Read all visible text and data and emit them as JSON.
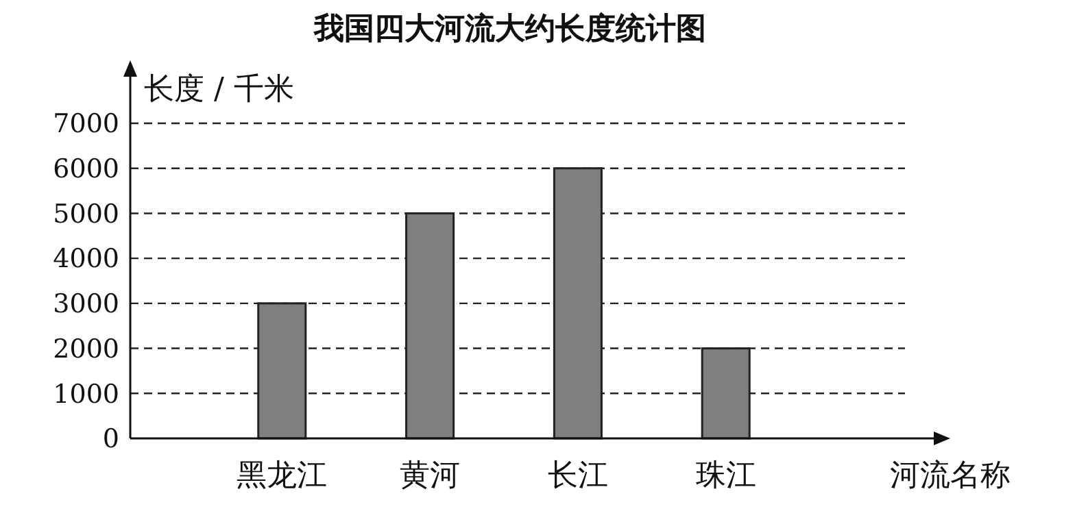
{
  "chart_data": {
    "type": "bar",
    "title": "我国四大河流大约长度统计图",
    "ylabel": "长度 / 千米",
    "xlabel": "河流名称",
    "categories": [
      "黑龙江",
      "黄河",
      "长江",
      "珠江"
    ],
    "values": [
      3000,
      5000,
      6000,
      2000
    ],
    "color": "#7f7f7f",
    "ylim": [
      0,
      7000
    ],
    "yticks": [
      0,
      1000,
      2000,
      3000,
      4000,
      5000,
      6000,
      7000
    ],
    "grid": "y"
  }
}
